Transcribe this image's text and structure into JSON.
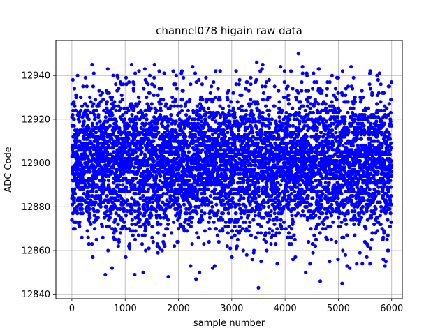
{
  "chart_data": {
    "type": "scatter",
    "title": "channel078 higain raw data",
    "xlabel": "sample number",
    "ylabel": "ADC Code",
    "xlim": [
      -300,
      6200
    ],
    "ylim": [
      12838,
      12956
    ],
    "x_ticks": [
      0,
      1000,
      2000,
      3000,
      4000,
      5000,
      6000
    ],
    "y_ticks": [
      12840,
      12860,
      12880,
      12900,
      12920,
      12940
    ],
    "grid": true,
    "marker_color": "#0000ff",
    "n_samples": 6000,
    "x_range": [
      0,
      5999
    ],
    "distribution": {
      "mean": 12900,
      "std": 16,
      "min": 12843,
      "max": 12950
    },
    "outliers": [
      {
        "x": 380,
        "y": 12945
      },
      {
        "x": 1120,
        "y": 12945
      },
      {
        "x": 1260,
        "y": 12942
      },
      {
        "x": 1380,
        "y": 12938
      },
      {
        "x": 1550,
        "y": 12945
      },
      {
        "x": 1640,
        "y": 12942
      },
      {
        "x": 3470,
        "y": 12946
      },
      {
        "x": 3580,
        "y": 12945
      },
      {
        "x": 4250,
        "y": 12950
      },
      {
        "x": 5000,
        "y": 12939
      },
      {
        "x": 5600,
        "y": 12942
      },
      {
        "x": 3500,
        "y": 12843
      },
      {
        "x": 5070,
        "y": 12845
      },
      {
        "x": 4660,
        "y": 12846
      },
      {
        "x": 2330,
        "y": 12847
      },
      {
        "x": 1810,
        "y": 12848
      },
      {
        "x": 1180,
        "y": 12849
      }
    ]
  }
}
